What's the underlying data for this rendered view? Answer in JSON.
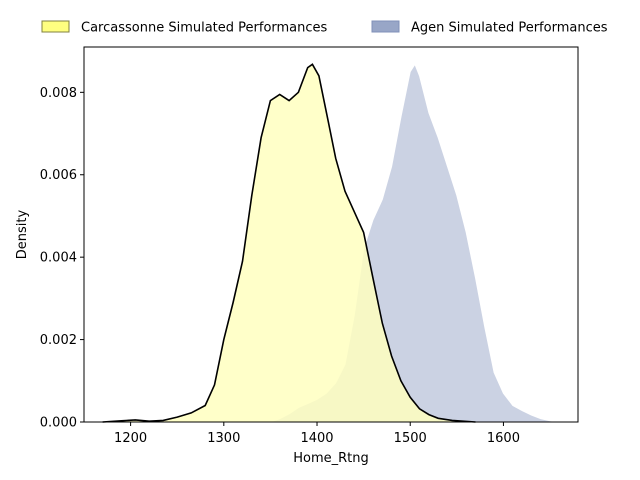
{
  "chart_data": {
    "type": "area",
    "title": "",
    "xlabel": "Home_Rtng",
    "ylabel": "Density",
    "xlim": [
      1150,
      1680
    ],
    "ylim": [
      0,
      0.0091
    ],
    "x_ticks": [
      1200,
      1300,
      1400,
      1500,
      1600
    ],
    "y_ticks": [
      0.0,
      0.002,
      0.004,
      0.006,
      0.008
    ],
    "y_tick_labels": [
      "0.000",
      "0.002",
      "0.004",
      "0.006",
      "0.008"
    ],
    "grid": false,
    "legend": "top, outside plot, 2 columns",
    "series": [
      {
        "name": "Carcassonne Simulated Performances",
        "fill": "#ffffbf",
        "stroke": "#000000",
        "points": [
          [
            1170,
            0.0
          ],
          [
            1190,
            3e-05
          ],
          [
            1205,
            5e-05
          ],
          [
            1220,
            2e-05
          ],
          [
            1235,
            4e-05
          ],
          [
            1250,
            0.00012
          ],
          [
            1265,
            0.00022
          ],
          [
            1280,
            0.0004
          ],
          [
            1290,
            0.0009
          ],
          [
            1300,
            0.002
          ],
          [
            1310,
            0.0029
          ],
          [
            1320,
            0.0039
          ],
          [
            1330,
            0.0055
          ],
          [
            1340,
            0.0069
          ],
          [
            1350,
            0.0078
          ],
          [
            1360,
            0.00795
          ],
          [
            1370,
            0.0078
          ],
          [
            1380,
            0.008
          ],
          [
            1390,
            0.0086
          ],
          [
            1395,
            0.00868
          ],
          [
            1402,
            0.0084
          ],
          [
            1412,
            0.0073
          ],
          [
            1420,
            0.0064
          ],
          [
            1430,
            0.0056
          ],
          [
            1440,
            0.0051
          ],
          [
            1450,
            0.0046
          ],
          [
            1460,
            0.0035
          ],
          [
            1470,
            0.0024
          ],
          [
            1480,
            0.0016
          ],
          [
            1490,
            0.001
          ],
          [
            1500,
            0.0006
          ],
          [
            1510,
            0.00032
          ],
          [
            1520,
            0.00018
          ],
          [
            1530,
            9e-05
          ],
          [
            1545,
            4e-05
          ],
          [
            1570,
            0.0
          ]
        ]
      },
      {
        "name": "Agen Simulated Performances",
        "fill": "#98a6c7",
        "stroke": "#ffffff",
        "points": [
          [
            1350,
            0.0
          ],
          [
            1360,
            8e-05
          ],
          [
            1370,
            0.0002
          ],
          [
            1380,
            0.00035
          ],
          [
            1390,
            0.00045
          ],
          [
            1400,
            0.00055
          ],
          [
            1410,
            0.0007
          ],
          [
            1420,
            0.00095
          ],
          [
            1430,
            0.0014
          ],
          [
            1440,
            0.0026
          ],
          [
            1450,
            0.0042
          ],
          [
            1460,
            0.0049
          ],
          [
            1470,
            0.0054
          ],
          [
            1480,
            0.0062
          ],
          [
            1490,
            0.0074
          ],
          [
            1500,
            0.0085
          ],
          [
            1505,
            0.00868
          ],
          [
            1510,
            0.0084
          ],
          [
            1520,
            0.0075
          ],
          [
            1530,
            0.0069
          ],
          [
            1540,
            0.0062
          ],
          [
            1550,
            0.0055
          ],
          [
            1560,
            0.0046
          ],
          [
            1570,
            0.0035
          ],
          [
            1580,
            0.0023
          ],
          [
            1590,
            0.0012
          ],
          [
            1600,
            0.0007
          ],
          [
            1610,
            0.0004
          ],
          [
            1620,
            0.00028
          ],
          [
            1630,
            0.00017
          ],
          [
            1640,
            8e-05
          ],
          [
            1650,
            3e-05
          ],
          [
            1660,
            0.0
          ]
        ]
      }
    ]
  }
}
